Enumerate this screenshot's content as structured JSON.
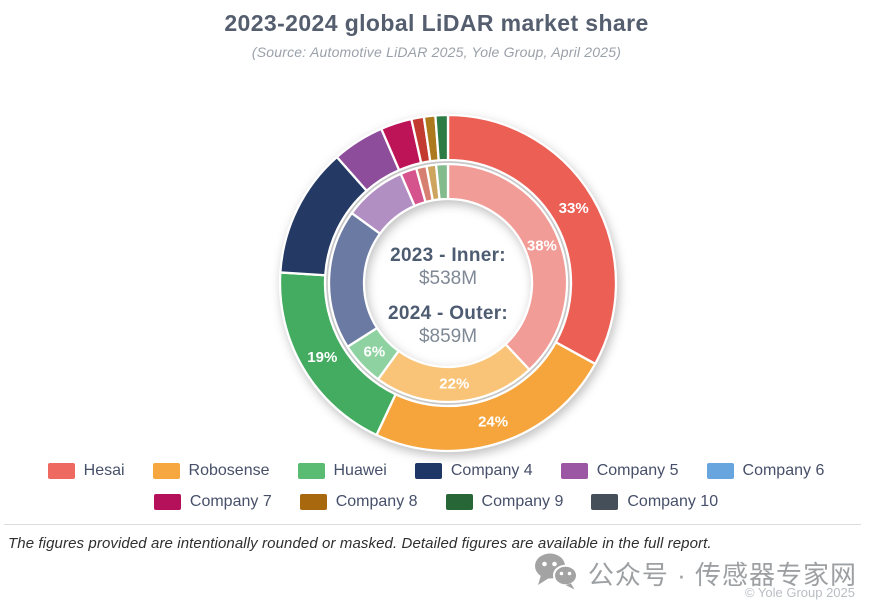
{
  "header": {
    "title": "2023-2024 global LiDAR market share",
    "subtitle": "(Source: Automotive LiDAR 2025, Yole Group, April 2025)"
  },
  "chart_data": {
    "type": "donut-nested",
    "title": "2023-2024 global LiDAR market share",
    "subtitle": "(Source: Automotive LiDAR 2025, Yole Group, April 2025)",
    "legend_position": "bottom",
    "center": {
      "line1_label": "2023 - Inner:",
      "line1_value": "$538M",
      "line2_label": "2024 - Outer:",
      "line2_value": "$859M"
    },
    "totals": {
      "2023": "$538M",
      "2024": "$859M"
    },
    "rings": [
      {
        "name": "2024-outer",
        "year": "2024",
        "r_inner": 123,
        "r_outer": 168,
        "label_radius": 146,
        "segments": [
          {
            "company": "Hesai",
            "value": 33,
            "label": "33%",
            "color": "#eb5f55"
          },
          {
            "company": "Robosense",
            "value": 24,
            "label": "24%",
            "color": "#f6a53c"
          },
          {
            "company": "Huawei",
            "value": 19,
            "label": "19%",
            "color": "#44ac60"
          },
          {
            "company": "Company 4",
            "value": 12.5,
            "color": "#243a64"
          },
          {
            "company": "Company 5",
            "value": 5,
            "color": "#8e4d9b"
          },
          {
            "company": "Company 7",
            "value": 3,
            "color": "#bd1457"
          },
          {
            "company": "Company 6",
            "value": 1.2,
            "color": "#c33a30"
          },
          {
            "company": "Company 8",
            "value": 1.1,
            "color": "#ac7a1d"
          },
          {
            "company": "Company 9",
            "value": 1.2,
            "color": "#2e7c45"
          }
        ]
      },
      {
        "name": "2023-inner",
        "year": "2023",
        "r_inner": 84,
        "r_outer": 119,
        "label_radius": 101,
        "segments": [
          {
            "company": "Hesai",
            "value": 38,
            "label": "38%",
            "color": "#f19c96"
          },
          {
            "company": "Robosense",
            "value": 22,
            "label": "22%",
            "color": "#f9c478"
          },
          {
            "company": "Huawei",
            "value": 6,
            "label": "6%",
            "color": "#8fd2a1"
          },
          {
            "company": "Company 4",
            "value": 19,
            "color": "#6b7aa2"
          },
          {
            "company": "Company 5",
            "value": 8.5,
            "color": "#b28fc2"
          },
          {
            "company": "Company 7",
            "value": 2.2,
            "color": "#d6548e"
          },
          {
            "company": "Company 6",
            "value": 1.4,
            "color": "#d77f70"
          },
          {
            "company": "Company 8",
            "value": 1.3,
            "color": "#cda55e"
          },
          {
            "company": "Company 9",
            "value": 1.6,
            "color": "#83bb8d"
          }
        ]
      }
    ]
  },
  "legend": {
    "items": [
      {
        "label": "Hesai",
        "color": "#ee6a61"
      },
      {
        "label": "Robosense",
        "color": "#f7a73f"
      },
      {
        "label": "Huawei",
        "color": "#5abc72"
      },
      {
        "label": "Company 4",
        "color": "#1f3766"
      },
      {
        "label": "Company 5",
        "color": "#9b57a3"
      },
      {
        "label": "Company 6",
        "color": "#68a4dd"
      },
      {
        "label": "Company 7",
        "color": "#b5105a"
      },
      {
        "label": "Company 8",
        "color": "#a8690e"
      },
      {
        "label": "Company 9",
        "color": "#266637"
      },
      {
        "label": "Company 10",
        "color": "#454f5a"
      }
    ]
  },
  "footer": {
    "note": "The figures provided are intentionally rounded or masked. Detailed figures are available in the full report.",
    "watermark_text": "公众号 · 传感器专家网",
    "copyright": "© Yole Group 2025"
  }
}
